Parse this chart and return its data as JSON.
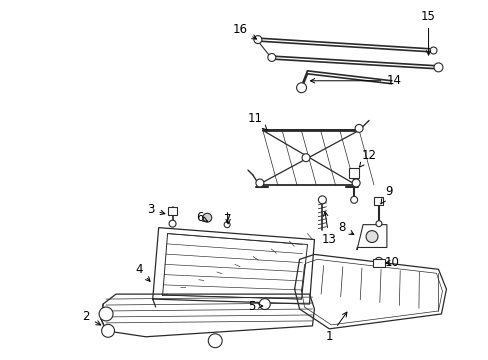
{
  "bg_color": "#ffffff",
  "fig_width": 4.89,
  "fig_height": 3.6,
  "dpi": 100,
  "line_color": "#2a2a2a",
  "label_fontsize": 8.5
}
